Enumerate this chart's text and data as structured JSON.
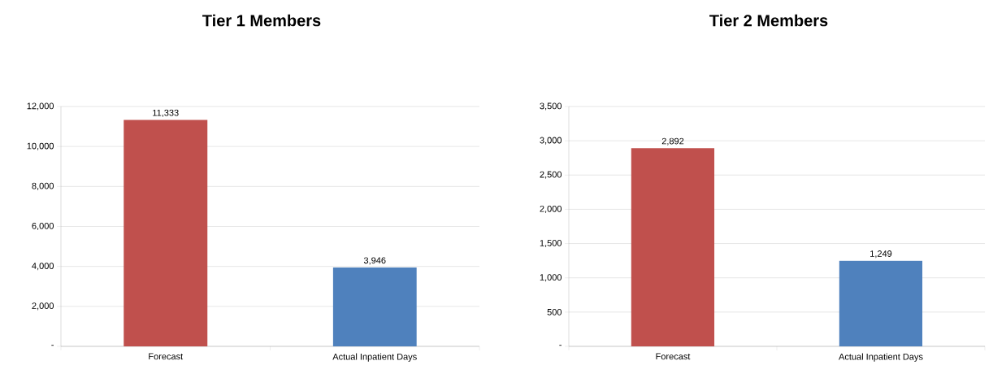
{
  "chart_data": [
    {
      "type": "bar",
      "title": "Tier 1 Members",
      "categories": [
        "Forecast",
        "Actual Inpatient Days"
      ],
      "values": [
        11333,
        3946
      ],
      "colors": [
        "#c0504d",
        "#4f81bd"
      ],
      "value_labels": [
        "11,333",
        "3,946"
      ],
      "ylim": [
        0,
        12000
      ],
      "yticks": [
        {
          "value": 0,
          "label": "-"
        },
        {
          "value": 2000,
          "label": "2,000"
        },
        {
          "value": 4000,
          "label": "4,000"
        },
        {
          "value": 6000,
          "label": "6,000"
        },
        {
          "value": 8000,
          "label": "8,000"
        },
        {
          "value": 10000,
          "label": "10,000"
        },
        {
          "value": 12000,
          "label": "12,000"
        }
      ],
      "grid": "y"
    },
    {
      "type": "bar",
      "title": "Tier 2 Members",
      "categories": [
        "Forecast",
        "Actual Inpatient Days"
      ],
      "values": [
        2892,
        1249
      ],
      "colors": [
        "#c0504d",
        "#4f81bd"
      ],
      "value_labels": [
        "2,892",
        "1,249"
      ],
      "ylim": [
        0,
        3500
      ],
      "yticks": [
        {
          "value": 0,
          "label": "-"
        },
        {
          "value": 500,
          "label": "500"
        },
        {
          "value": 1000,
          "label": "1,000"
        },
        {
          "value": 1500,
          "label": "1,500"
        },
        {
          "value": 2000,
          "label": "2,000"
        },
        {
          "value": 2500,
          "label": "2,500"
        },
        {
          "value": 3000,
          "label": "3,000"
        },
        {
          "value": 3500,
          "label": "3,500"
        }
      ],
      "grid": "y"
    }
  ]
}
